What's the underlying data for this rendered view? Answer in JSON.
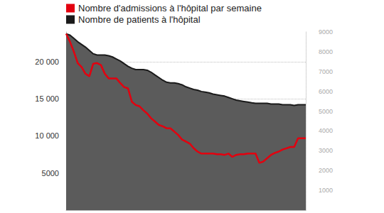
{
  "chart_data": {
    "type": "line",
    "categories": [
      null,
      null,
      null,
      null,
      null,
      null,
      null,
      null,
      null,
      null,
      null,
      null,
      null,
      null,
      null,
      null,
      null,
      null,
      null,
      null,
      null,
      null,
      null,
      null,
      null,
      null,
      null,
      null,
      null,
      null,
      null,
      null,
      null,
      null,
      null,
      null,
      null,
      null,
      null,
      null,
      null,
      null,
      null,
      null,
      null,
      null,
      null,
      null,
      null,
      null,
      null,
      null,
      null,
      null,
      null,
      null,
      null,
      null,
      null,
      null,
      null,
      null,
      null
    ],
    "series": [
      {
        "name": "Nombre d'admissions à l'hôpital par semaine",
        "color": "#e3000f",
        "axis": "y2",
        "values": [
          8908,
          8504,
          8000,
          7429,
          7227,
          6891,
          6756,
          7395,
          7429,
          7328,
          6891,
          6655,
          6655,
          6655,
          6420,
          6218,
          6151,
          5479,
          5311,
          5244,
          5042,
          4874,
          4639,
          4471,
          4303,
          4235,
          4134,
          4134,
          3966,
          3798,
          3563,
          3462,
          3361,
          3126,
          2958,
          2857,
          2857,
          2857,
          2857,
          2824,
          2824,
          2790,
          2857,
          2689,
          2790,
          2824,
          2824,
          2857,
          2857,
          2857,
          2387,
          2454,
          2622,
          2790,
          2891,
          2958,
          3059,
          3126,
          3193,
          3193,
          3630,
          3630,
          3630
        ]
      },
      {
        "name": "Nombre de patients à l'hôpital",
        "color": "#1a1a1a",
        "type": "area",
        "values": [
          23750,
          23570,
          23130,
          22680,
          22320,
          21960,
          21520,
          21070,
          20890,
          20890,
          20890,
          20800,
          20630,
          20360,
          20090,
          19730,
          19380,
          19110,
          18930,
          18930,
          18930,
          18840,
          18570,
          18210,
          17860,
          17500,
          17230,
          17140,
          17140,
          17050,
          16880,
          16610,
          16430,
          16250,
          16160,
          15980,
          15890,
          15800,
          15630,
          15540,
          15450,
          15360,
          15180,
          15000,
          14820,
          14730,
          14640,
          14550,
          14460,
          14380,
          14380,
          14380,
          14380,
          14290,
          14290,
          14290,
          14200,
          14200,
          14200,
          14110,
          14200,
          14200,
          14200
        ]
      }
    ],
    "ylim": [
      0,
      24000
    ],
    "yticks": [
      5000,
      {
        "value": 10000,
        "label": "10 000"
      },
      {
        "value": 15000,
        "label": "15 000"
      },
      {
        "value": 20000,
        "label": "20 000"
      }
    ],
    "y2lim": [
      0,
      9000
    ],
    "y2ticks": [
      1000,
      2000,
      3000,
      4000,
      5000,
      6000,
      7000,
      8000,
      9000
    ],
    "grid": true,
    "legend": "top-left",
    "tick_labels": "y"
  }
}
